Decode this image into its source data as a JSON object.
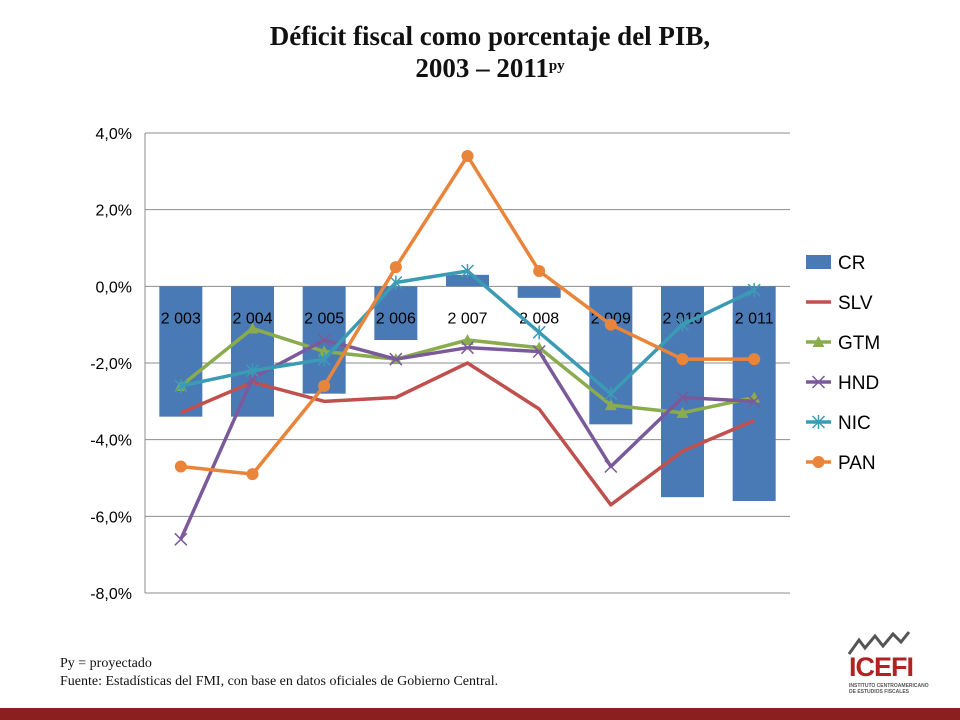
{
  "title_line1": "Déficit fiscal como porcentaje del PIB,",
  "title_line2": "2003 – 2011",
  "title_sup": "py",
  "note_line1": "Py = proyectado",
  "note_line2": "Fuente: Estadísticas del FMI, con base en datos oficiales de Gobierno Central.",
  "logo_text": "ICEFI",
  "logo_subtext": "INSTITUTO CENTROAMERICANO DE ESTUDIOS FISCALES",
  "chart_data": {
    "type": "bar+line",
    "categories": [
      "2 003",
      "2 004",
      "2 005",
      "2 006",
      "2 007",
      "2 008",
      "2 009",
      "2 010",
      "2 011"
    ],
    "ylim": [
      -8.0,
      4.0
    ],
    "yticks": [
      "4,0%",
      "2,0%",
      "0,0%",
      "-2,0%",
      "-4,0%",
      "-6,0%",
      "-8,0%"
    ],
    "grid": true,
    "legend_position": "right",
    "bars": {
      "name": "CR",
      "color": "#4a7ab5",
      "values": [
        -3.4,
        -3.4,
        -2.8,
        -1.4,
        0.3,
        -0.3,
        -3.6,
        -5.5,
        -5.6
      ]
    },
    "series": [
      {
        "name": "SLV",
        "color": "#c0504d",
        "marker": "none",
        "values": [
          -3.3,
          -2.5,
          -3.0,
          -2.9,
          -2.0,
          -3.2,
          -5.7,
          -4.3,
          -3.5
        ]
      },
      {
        "name": "GTM",
        "color": "#8aac4e",
        "marker": "triangle",
        "values": [
          -2.6,
          -1.1,
          -1.7,
          -1.9,
          -1.4,
          -1.6,
          -3.1,
          -3.3,
          -2.9
        ]
      },
      {
        "name": "HND",
        "color": "#7b5a9c",
        "marker": "x",
        "values": [
          -6.6,
          -2.4,
          -1.4,
          -1.9,
          -1.6,
          -1.7,
          -4.7,
          -2.9,
          -3.0
        ]
      },
      {
        "name": "NIC",
        "color": "#3b9bb5",
        "marker": "star",
        "values": [
          -2.6,
          -2.2,
          -1.9,
          0.1,
          0.4,
          -1.2,
          -2.8,
          -1.0,
          -0.1
        ]
      },
      {
        "name": "PAN",
        "color": "#e8853a",
        "marker": "circle",
        "values": [
          -4.7,
          -4.9,
          -2.6,
          0.5,
          3.4,
          0.4,
          -1.0,
          -1.9,
          -1.9
        ]
      }
    ]
  }
}
